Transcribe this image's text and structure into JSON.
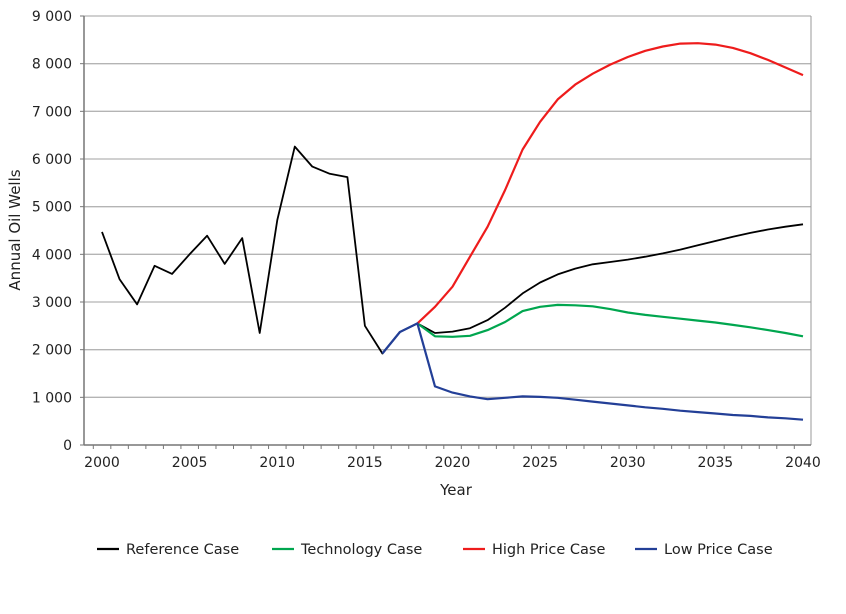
{
  "chart_data": {
    "type": "line",
    "title": "",
    "xlabel": "Year",
    "ylabel": "Annual Oil Wells",
    "xlim": [
      2000,
      2040
    ],
    "ylim": [
      0,
      9000
    ],
    "x_ticks": [
      2000,
      2005,
      2010,
      2015,
      2020,
      2025,
      2030,
      2035,
      2040
    ],
    "y_ticks": [
      0,
      1000,
      2000,
      3000,
      4000,
      5000,
      6000,
      7000,
      8000,
      9000
    ],
    "y_tick_labels": [
      "0",
      "1 000",
      "2 000",
      "3 000",
      "4 000",
      "5 000",
      "6 000",
      "7 000",
      "8 000",
      "9 000"
    ],
    "grid": "horizontal",
    "legend_position": "bottom",
    "series": [
      {
        "name": "Reference Case",
        "color": "#000000",
        "start": 2000,
        "values": [
          4470,
          3480,
          2950,
          3760,
          3590,
          4000,
          4390,
          3800,
          4340,
          2350,
          4720,
          6260,
          5840,
          5690,
          5620,
          2500,
          1920,
          2370,
          2550,
          2350,
          2380,
          2450,
          2620,
          2880,
          3180,
          3410,
          3580,
          3700,
          3790,
          3840,
          3890,
          3950,
          4020,
          4100,
          4190,
          4280,
          4370,
          4450,
          4520,
          4580,
          4630
        ]
      },
      {
        "name": "Technology Case",
        "color": "#00a64f",
        "start": 2018,
        "values": [
          2550,
          2280,
          2270,
          2290,
          2410,
          2580,
          2810,
          2900,
          2940,
          2930,
          2910,
          2850,
          2780,
          2730,
          2690,
          2650,
          2610,
          2570,
          2520,
          2470,
          2410,
          2350,
          2280
        ]
      },
      {
        "name": "High Price Case",
        "color": "#ee1c1c",
        "start": 2018,
        "values": [
          2550,
          2900,
          3320,
          3950,
          4580,
          5350,
          6200,
          6780,
          7250,
          7560,
          7790,
          7980,
          8140,
          8270,
          8360,
          8420,
          8430,
          8400,
          8330,
          8220,
          8080,
          7920,
          7760
        ]
      },
      {
        "name": "Low Price Case",
        "color": "#233f97",
        "start": 2016,
        "values": [
          1920,
          2370,
          2550,
          1230,
          1100,
          1020,
          960,
          990,
          1020,
          1010,
          990,
          950,
          910,
          870,
          830,
          790,
          760,
          720,
          690,
          660,
          630,
          610,
          580,
          560,
          530
        ]
      }
    ]
  }
}
